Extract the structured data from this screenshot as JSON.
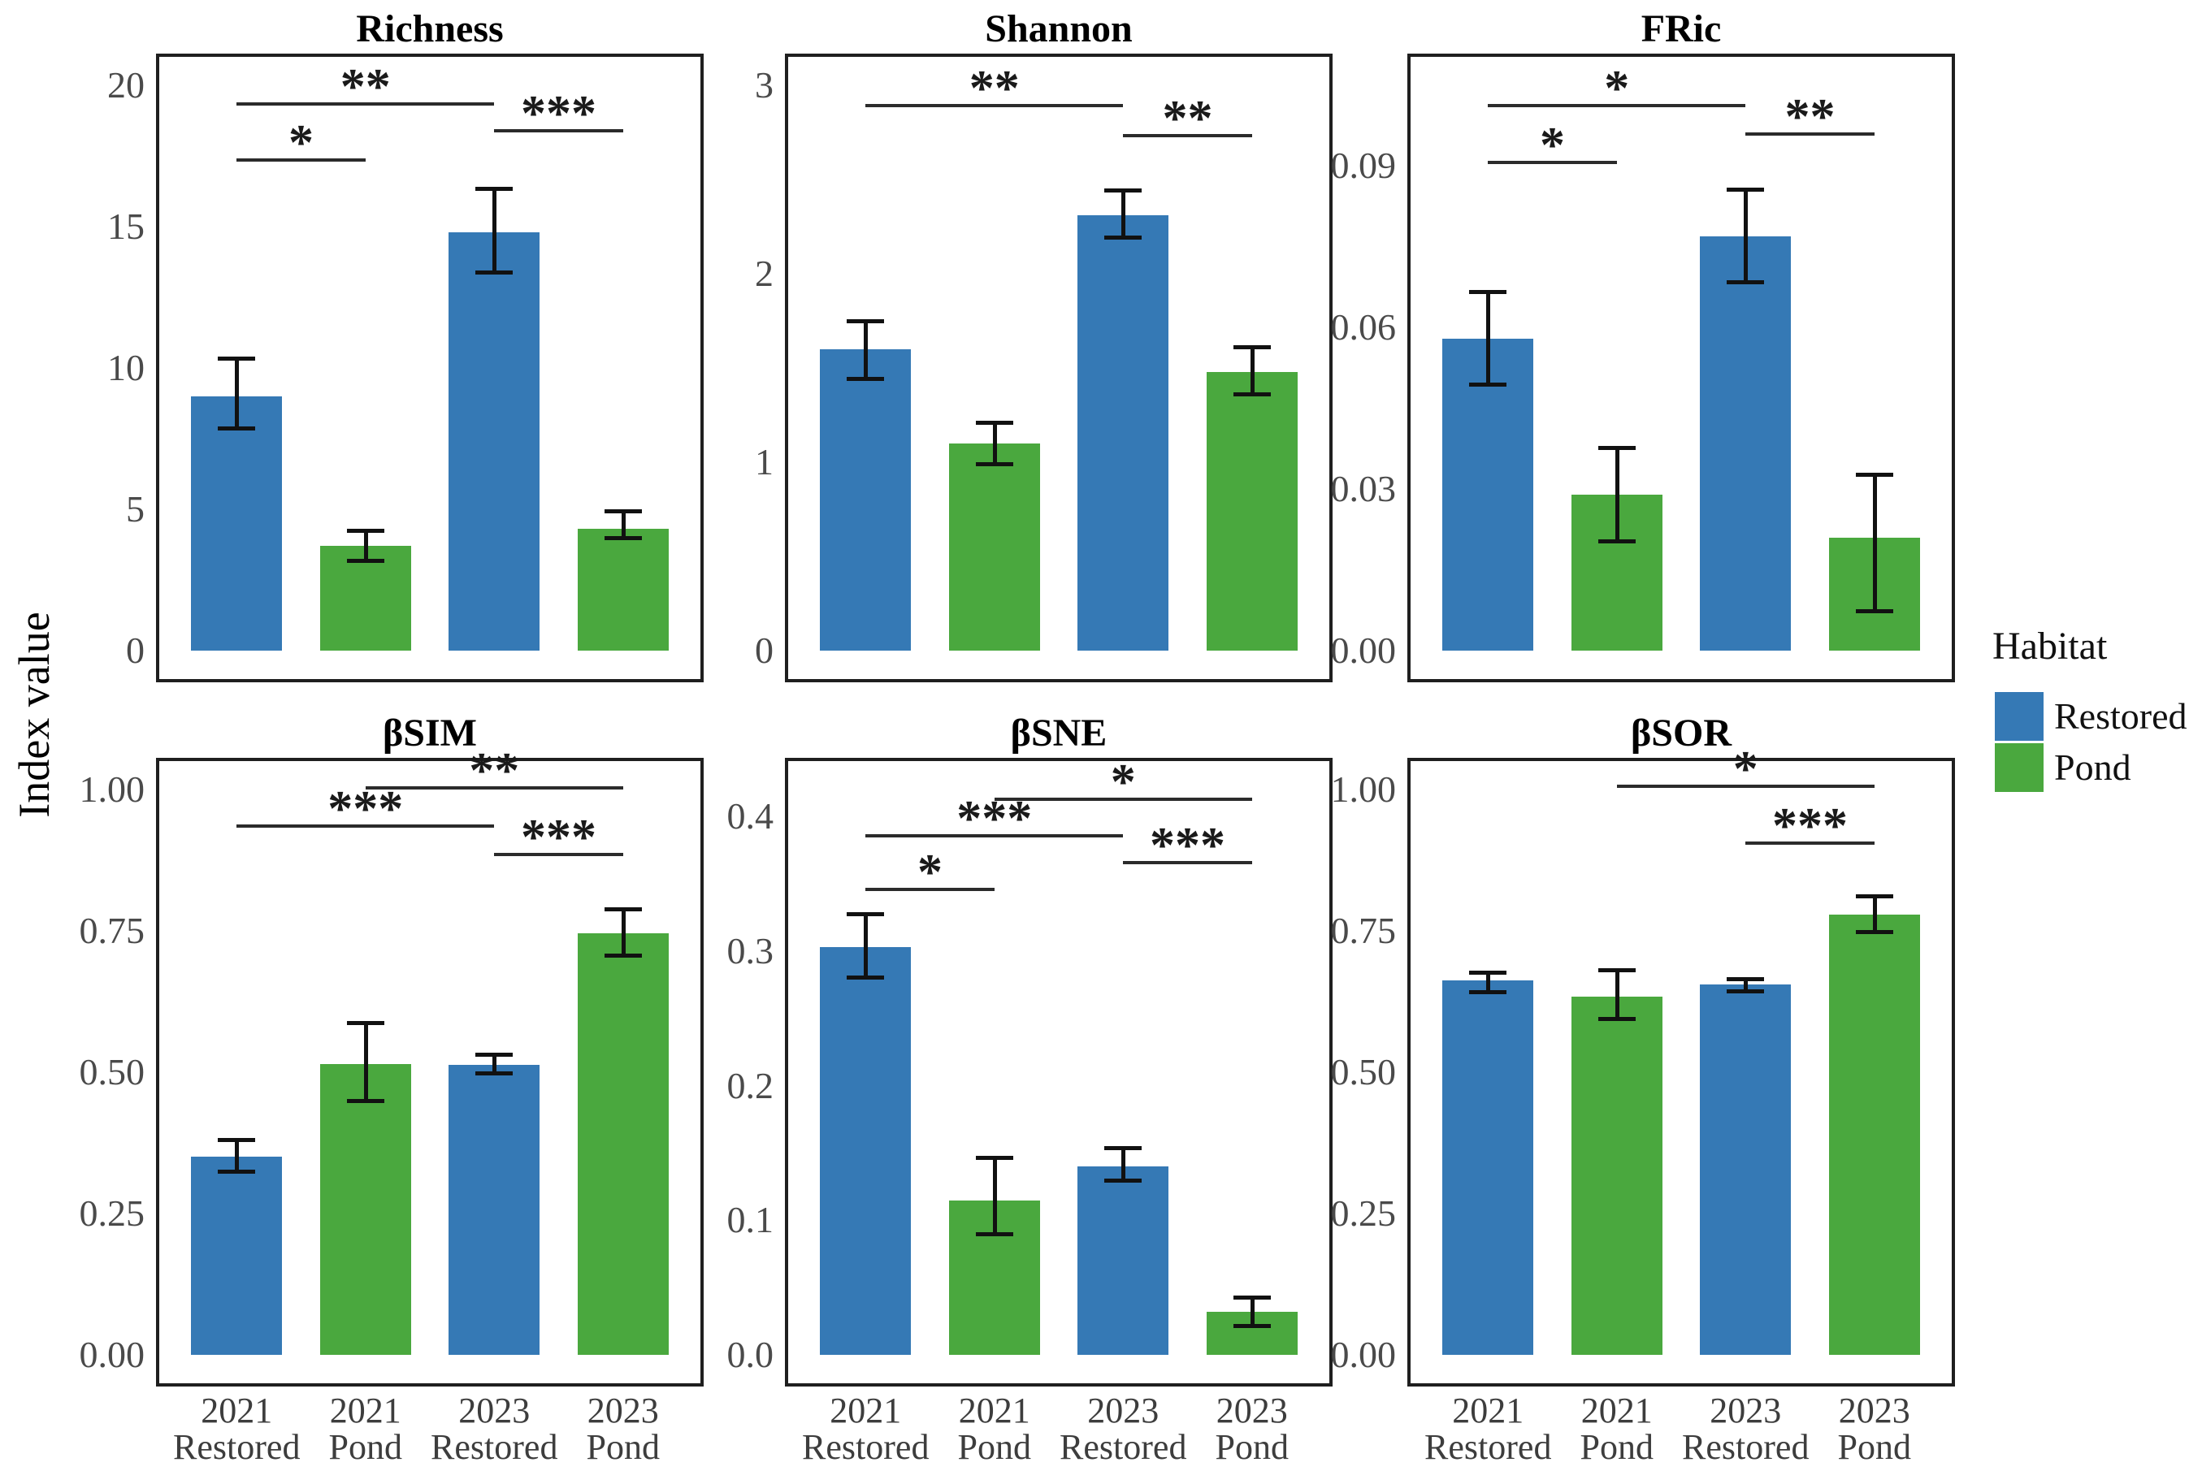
{
  "figure": {
    "y_axis_label": "Index value",
    "background": "#ffffff"
  },
  "legend": {
    "title": "Habitat",
    "items": [
      {
        "label": "Restored",
        "color": "#3579b5"
      },
      {
        "label": "Pond",
        "color": "#4aa83e"
      }
    ]
  },
  "chart_data": {
    "type": "bar",
    "ylabel": "Index value",
    "categories": [
      [
        "2021",
        "Restored"
      ],
      [
        "2021",
        "Pond"
      ],
      [
        "2023",
        "Restored"
      ],
      [
        "2023",
        "Pond"
      ]
    ],
    "bar_habitats": [
      "Restored",
      "Pond",
      "Restored",
      "Pond"
    ],
    "series_colors": {
      "Restored": "#3579b5",
      "Pond": "#4aa83e"
    },
    "error_bar_color": "#111111",
    "legend_position": "right",
    "grid": false,
    "panels": [
      {
        "title": "Richness",
        "ylim": [
          0,
          20
        ],
        "ticks": [
          {
            "v": 0,
            "label": "0"
          },
          {
            "v": 5,
            "label": "5"
          },
          {
            "v": 10,
            "label": "10"
          },
          {
            "v": 15,
            "label": "15"
          },
          {
            "v": 20,
            "label": "20"
          }
        ],
        "values": [
          9.0,
          3.7,
          14.8,
          4.3
        ],
        "errors": [
          [
            7.8,
            10.4
          ],
          [
            3.1,
            4.3
          ],
          [
            13.3,
            16.4
          ],
          [
            3.9,
            5.0
          ]
        ],
        "significance": [
          {
            "from": 0,
            "to": 2,
            "y": 19.4,
            "label": "**"
          },
          {
            "from": 0,
            "to": 1,
            "y": 17.4,
            "label": "*"
          },
          {
            "from": 2,
            "to": 3,
            "y": 18.45,
            "label": "***"
          }
        ]
      },
      {
        "title": "Shannon",
        "ylim": [
          0,
          3
        ],
        "ticks": [
          {
            "v": 0,
            "label": "0"
          },
          {
            "v": 1,
            "label": "1"
          },
          {
            "v": 2,
            "label": "2"
          },
          {
            "v": 3,
            "label": "3"
          }
        ],
        "values": [
          1.6,
          1.1,
          2.31,
          1.48
        ],
        "errors": [
          [
            1.43,
            1.76
          ],
          [
            0.98,
            1.22
          ],
          [
            2.18,
            2.45
          ],
          [
            1.35,
            1.62
          ]
        ],
        "significance": [
          {
            "from": 0,
            "to": 2,
            "y": 2.9,
            "label": "**"
          },
          {
            "from": 2,
            "to": 3,
            "y": 2.74,
            "label": "**"
          }
        ]
      },
      {
        "title": "FRic",
        "ylim": [
          0,
          0.105
        ],
        "ticks": [
          {
            "v": 0,
            "label": "0.00"
          },
          {
            "v": 0.03,
            "label": "0.03"
          },
          {
            "v": 0.06,
            "label": "0.06"
          },
          {
            "v": 0.09,
            "label": "0.09"
          }
        ],
        "values": [
          0.058,
          0.029,
          0.077,
          0.021
        ],
        "errors": [
          [
            0.049,
            0.067
          ],
          [
            0.02,
            0.038
          ],
          [
            0.068,
            0.086
          ],
          [
            0.007,
            0.033
          ]
        ],
        "significance": [
          {
            "from": 0,
            "to": 2,
            "y": 0.1015,
            "label": "*"
          },
          {
            "from": 0,
            "to": 1,
            "y": 0.091,
            "label": "*"
          },
          {
            "from": 2,
            "to": 3,
            "y": 0.0962,
            "label": "**"
          }
        ]
      },
      {
        "title": "βSIM",
        "ylim": [
          0,
          1
        ],
        "ticks": [
          {
            "v": 0,
            "label": "0.00"
          },
          {
            "v": 0.25,
            "label": "0.25"
          },
          {
            "v": 0.5,
            "label": "0.50"
          },
          {
            "v": 0.75,
            "label": "0.75"
          },
          {
            "v": 1,
            "label": "1.00"
          }
        ],
        "values": [
          0.351,
          0.514,
          0.513,
          0.746
        ],
        "errors": [
          [
            0.321,
            0.384
          ],
          [
            0.446,
            0.591
          ],
          [
            0.494,
            0.535
          ],
          [
            0.702,
            0.792
          ]
        ],
        "significance": [
          {
            "from": 1,
            "to": 3,
            "y": 1.005,
            "label": "**"
          },
          {
            "from": 0,
            "to": 2,
            "y": 0.938,
            "label": "***"
          },
          {
            "from": 2,
            "to": 3,
            "y": 0.888,
            "label": "***"
          }
        ]
      },
      {
        "title": "βSNE",
        "ylim": [
          0,
          0.42
        ],
        "ticks": [
          {
            "v": 0,
            "label": "0.0"
          },
          {
            "v": 0.1,
            "label": "0.1"
          },
          {
            "v": 0.2,
            "label": "0.2"
          },
          {
            "v": 0.3,
            "label": "0.3"
          },
          {
            "v": 0.4,
            "label": "0.4"
          }
        ],
        "values": [
          0.303,
          0.115,
          0.14,
          0.032
        ],
        "errors": [
          [
            0.279,
            0.329
          ],
          [
            0.088,
            0.148
          ],
          [
            0.128,
            0.155
          ],
          [
            0.02,
            0.044
          ]
        ],
        "significance": [
          {
            "from": 1,
            "to": 3,
            "y": 0.414,
            "label": "*"
          },
          {
            "from": 0,
            "to": 2,
            "y": 0.387,
            "label": "***"
          },
          {
            "from": 2,
            "to": 3,
            "y": 0.367,
            "label": "***"
          },
          {
            "from": 0,
            "to": 1,
            "y": 0.347,
            "label": "*"
          }
        ]
      },
      {
        "title": "βSOR",
        "ylim": [
          0,
          1
        ],
        "ticks": [
          {
            "v": 0,
            "label": "0.00"
          },
          {
            "v": 0.25,
            "label": "0.25"
          },
          {
            "v": 0.5,
            "label": "0.50"
          },
          {
            "v": 0.75,
            "label": "0.75"
          },
          {
            "v": 1,
            "label": "1.00"
          }
        ],
        "values": [
          0.662,
          0.633,
          0.655,
          0.779
        ],
        "errors": [
          [
            0.638,
            0.68
          ],
          [
            0.59,
            0.684
          ],
          [
            0.639,
            0.668
          ],
          [
            0.744,
            0.814
          ]
        ],
        "significance": [
          {
            "from": 1,
            "to": 3,
            "y": 1.008,
            "label": "*"
          },
          {
            "from": 2,
            "to": 3,
            "y": 0.908,
            "label": "***"
          }
        ]
      }
    ]
  }
}
